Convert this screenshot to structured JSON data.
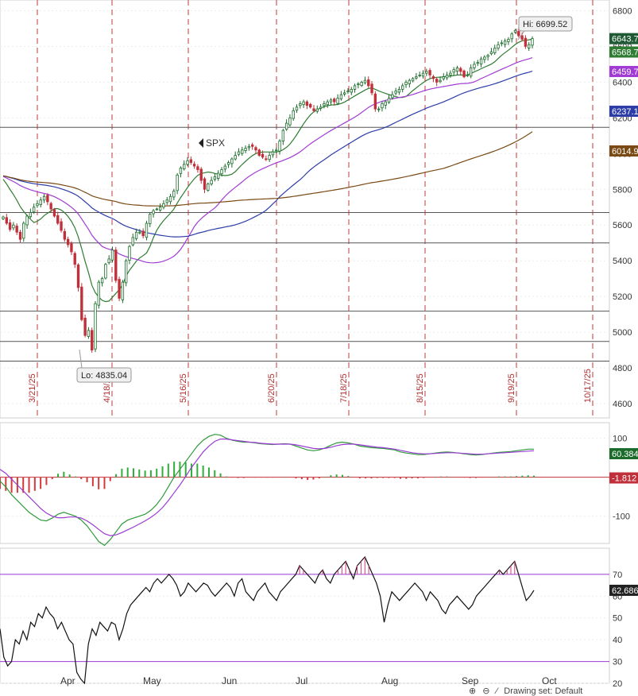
{
  "chart_data": [
    {
      "type": "candlestick",
      "symbol": "SPX",
      "hi_label": "Hi: 6699.52",
      "lo_label": "Lo: 4835.04",
      "y_ticks": [
        "6800",
        "6600",
        "6400",
        "6200",
        "6000",
        "5800",
        "5600",
        "5400",
        "5200",
        "5000",
        "4800",
        "4600"
      ],
      "ylim": [
        4520,
        6860
      ],
      "date_labels": [
        "3/21/25",
        "4/18/25",
        "5/16/25",
        "6/20/25",
        "7/18/25",
        "8/15/25",
        "9/19/25",
        "10/17/25"
      ],
      "price_tags": [
        {
          "text": "6643.7",
          "value": 6643.7,
          "color": "#1f5a34"
        },
        {
          "text": "6568.7",
          "value": 6568.7,
          "color": "#2e7d32"
        },
        {
          "text": "6459.7",
          "value": 6459.7,
          "color": "#a23bd4"
        },
        {
          "text": "6237.1",
          "value": 6237.1,
          "color": "#2c3da8"
        },
        {
          "text": "6014.9",
          "value": 6014.9,
          "color": "#7a4a14"
        }
      ],
      "horizontal_levels": [
        6147,
        5670,
        5500,
        5118,
        4948,
        4838
      ],
      "series_colors": {
        "ma_fast": "#2e7d32",
        "ma_mid": "#a23bd4",
        "ma_slow": "#2c3da8",
        "ma_long": "#7a4a14",
        "up": "#1b6b2a",
        "down": "#c0303a"
      },
      "closes": [
        5645,
        5610,
        5575,
        5600,
        5560,
        5520,
        5610,
        5650,
        5670,
        5700,
        5720,
        5740,
        5760,
        5730,
        5690,
        5650,
        5610,
        5570,
        5520,
        5490,
        5450,
        5380,
        5250,
        5070,
        4982,
        5010,
        4900,
        5160,
        5280,
        5300,
        5380,
        5410,
        5460,
        5290,
        5190,
        5280,
        5400,
        5480,
        5530,
        5560,
        5560,
        5540,
        5610,
        5660,
        5680,
        5690,
        5700,
        5720,
        5740,
        5760,
        5790,
        5880,
        5920,
        5940,
        5960,
        5950,
        5930,
        5910,
        5850,
        5800,
        5830,
        5850,
        5870,
        5890,
        5910,
        5930,
        5950,
        5970,
        5990,
        6010,
        6020,
        6030,
        6040,
        6040,
        6020,
        5990,
        5980,
        5970,
        5990,
        6010,
        6020,
        6070,
        6130,
        6170,
        6200,
        6240,
        6260,
        6280,
        6290,
        6270,
        6260,
        6240,
        6250,
        6260,
        6280,
        6290,
        6300,
        6290,
        6310,
        6330,
        6340,
        6350,
        6360,
        6380,
        6390,
        6400,
        6410,
        6380,
        6340,
        6250,
        6250,
        6280,
        6290,
        6310,
        6330,
        6350,
        6360,
        6380,
        6400,
        6410,
        6420,
        6430,
        6440,
        6450,
        6460,
        6440,
        6420,
        6400,
        6410,
        6430,
        6440,
        6450,
        6470,
        6480,
        6460,
        6430,
        6440,
        6480,
        6500,
        6510,
        6530,
        6540,
        6550,
        6570,
        6590,
        6610,
        6620,
        6630,
        6640,
        6670,
        6690,
        6660,
        6640,
        6600,
        6610,
        6643.7
      ]
    },
    {
      "type": "line",
      "name": "MACD",
      "y_ticks": [
        "100",
        "-100"
      ],
      "ylim": [
        -170,
        140
      ],
      "value_tags": [
        {
          "text": "60.384",
          "value": 60.384,
          "color": "#1b6b2a"
        },
        {
          "text": "-1.812",
          "value": -1.812,
          "color": "#c0303a"
        }
      ],
      "macd": [
        -10,
        -25,
        -45,
        -60,
        -75,
        -90,
        -100,
        -110,
        -112,
        -105,
        -95,
        -90,
        -95,
        -100,
        -110,
        -125,
        -145,
        -165,
        -175,
        -160,
        -140,
        -120,
        -110,
        -105,
        -100,
        -95,
        -85,
        -70,
        -50,
        -25,
        0,
        20,
        40,
        60,
        80,
        95,
        105,
        110,
        108,
        100,
        95,
        92,
        90,
        90,
        88,
        86,
        85,
        84,
        85,
        86,
        85,
        80,
        75,
        70,
        68,
        70,
        75,
        82,
        88,
        90,
        88,
        85,
        80,
        78,
        76,
        75,
        74,
        72,
        70,
        65,
        62,
        60,
        58,
        58,
        60,
        62,
        64,
        65,
        64,
        62,
        60,
        58,
        57,
        58,
        60,
        62,
        64,
        65,
        66,
        68,
        70,
        72,
        72
      ],
      "signal": [
        20,
        10,
        -5,
        -20,
        -35,
        -50,
        -65,
        -80,
        -92,
        -100,
        -104,
        -104,
        -102,
        -102,
        -105,
        -112,
        -122,
        -134,
        -145,
        -150,
        -148,
        -142,
        -135,
        -128,
        -120,
        -112,
        -103,
        -92,
        -78,
        -60,
        -40,
        -20,
        2,
        25,
        45,
        65,
        80,
        92,
        98,
        98,
        96,
        94,
        92,
        90,
        89,
        87,
        86,
        85,
        85,
        85,
        85,
        83,
        80,
        77,
        74,
        73,
        74,
        77,
        81,
        84,
        85,
        85,
        83,
        81,
        79,
        77,
        76,
        74,
        72,
        69,
        66,
        63,
        61,
        60,
        60,
        61,
        62,
        63,
        63,
        62,
        61,
        60,
        59,
        59,
        60,
        61,
        62,
        63,
        64,
        65,
        66,
        67,
        68
      ],
      "histogram": [
        -30,
        -35,
        -40,
        -40,
        -40,
        -40,
        -35,
        -30,
        -20,
        -5,
        9,
        14,
        7,
        2,
        -5,
        -13,
        -23,
        -31,
        -30,
        -10,
        8,
        22,
        25,
        23,
        20,
        17,
        18,
        22,
        28,
        35,
        40,
        40,
        38,
        35,
        35,
        30,
        25,
        18,
        10,
        2,
        -1,
        -2,
        -2,
        0,
        -1,
        -1,
        -1,
        -1,
        0,
        1,
        0,
        -3,
        -5,
        -7,
        -6,
        -3,
        1,
        5,
        7,
        6,
        3,
        0,
        -3,
        -3,
        -3,
        -2,
        -2,
        -2,
        -2,
        -4,
        -4,
        -3,
        -3,
        -2,
        0,
        1,
        2,
        2,
        1,
        0,
        -1,
        -2,
        -2,
        -1,
        0,
        1,
        2,
        2,
        2,
        3,
        4,
        5,
        4
      ]
    },
    {
      "type": "line",
      "name": "RSI",
      "y_ticks": [
        "70",
        "60",
        "50",
        "40",
        "30",
        "20"
      ],
      "ylim": [
        20,
        82
      ],
      "overbought": 70,
      "oversold": 30,
      "value_tag": {
        "text": "62.686",
        "value": 62.686,
        "color": "#222222"
      },
      "x_month_labels": [
        "Apr",
        "May",
        "Jun",
        "Jul",
        "Aug",
        "Sep",
        "Oct"
      ],
      "values": [
        45,
        32,
        28,
        30,
        40,
        38,
        44,
        40,
        48,
        46,
        52,
        50,
        55,
        52,
        50,
        45,
        48,
        44,
        40,
        38,
        25,
        22,
        20,
        38,
        45,
        42,
        48,
        46,
        44,
        48,
        47,
        40,
        45,
        52,
        56,
        58,
        60,
        62,
        64,
        62,
        66,
        68,
        66,
        68,
        70,
        68,
        65,
        60,
        62,
        66,
        64,
        62,
        64,
        66,
        65,
        62,
        60,
        62,
        64,
        66,
        64,
        60,
        66,
        68,
        62,
        60,
        58,
        62,
        64,
        66,
        62,
        60,
        58,
        62,
        64,
        66,
        68,
        70,
        74,
        72,
        70,
        68,
        66,
        70,
        72,
        68,
        66,
        70,
        72,
        74,
        76,
        72,
        68,
        74,
        76,
        78,
        74,
        70,
        66,
        60,
        48,
        56,
        62,
        60,
        58,
        60,
        62,
        64,
        66,
        64,
        62,
        58,
        62,
        60,
        58,
        54,
        52,
        56,
        58,
        60,
        58,
        56,
        54,
        56,
        60,
        62,
        64,
        66,
        68,
        70,
        72,
        70,
        72,
        74,
        76,
        70,
        64,
        58,
        60,
        62.686
      ]
    }
  ],
  "footer": {
    "drawing_set_label": "Drawing set: Default"
  }
}
